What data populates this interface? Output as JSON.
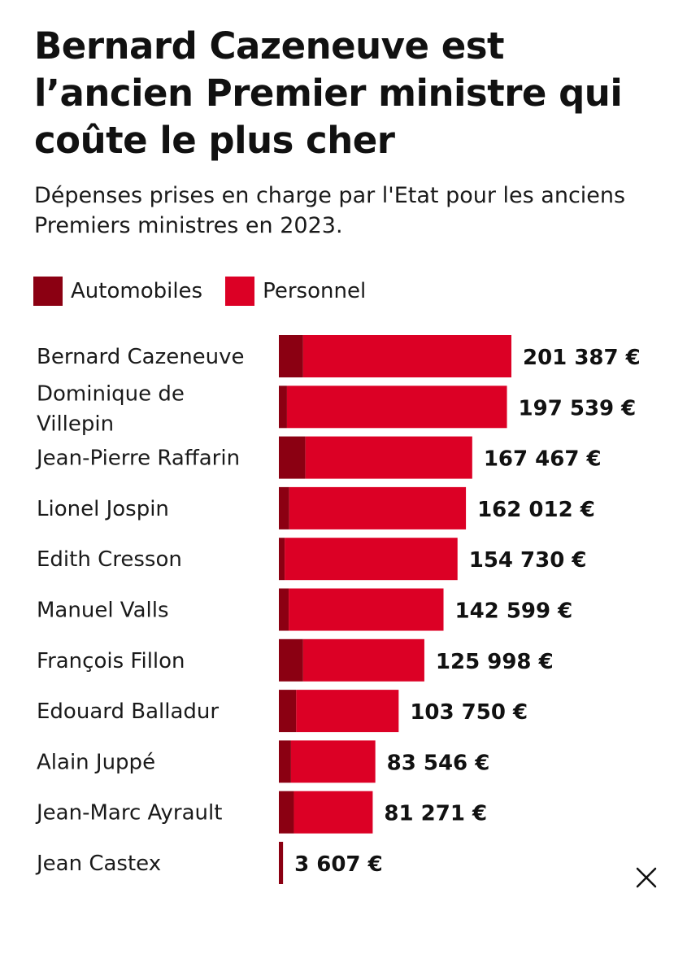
{
  "title": "Bernard Cazeneuve est l’ancien Premier ministre qui coûte le plus cher",
  "subtitle": "Dépenses prises en charge par l'Etat pour les anciens Premiers ministres en 2023.",
  "legend": [
    {
      "label": "Automobiles",
      "color": "#8b0012"
    },
    {
      "label": "Personnel",
      "color": "#dc0025"
    }
  ],
  "close_icon": "close-icon",
  "chart_data": {
    "type": "bar",
    "orientation": "horizontal",
    "stacked": true,
    "categories": [
      "Bernard Cazeneuve",
      "Dominique de Villepin",
      "Jean-Pierre Raffarin",
      "Lionel Jospin",
      "Edith Cresson",
      "Manuel Valls",
      "François Fillon",
      "Edouard Balladur",
      "Alain Juppé",
      "Jean-Marc Ayrault",
      "Jean Castex"
    ],
    "category_lines": [
      [
        "Bernard Cazeneuve"
      ],
      [
        "Dominique de",
        "Villepin"
      ],
      [
        "Jean-Pierre Raffarin"
      ],
      [
        "Lionel Jospin"
      ],
      [
        "Edith Cresson"
      ],
      [
        "Manuel Valls"
      ],
      [
        "François Fillon"
      ],
      [
        "Edouard Balladur"
      ],
      [
        "Alain Juppé"
      ],
      [
        "Jean-Marc Ayrault"
      ],
      [
        "Jean Castex"
      ]
    ],
    "series": [
      {
        "name": "Automobiles",
        "values": [
          21000,
          7000,
          23000,
          9000,
          5000,
          8500,
          21000,
          15000,
          10500,
          13000,
          3607
        ]
      },
      {
        "name": "Personnel",
        "values": [
          180387,
          190539,
          144467,
          153012,
          149730,
          134099,
          104998,
          88750,
          73046,
          68271,
          0
        ]
      }
    ],
    "totals": [
      201387,
      197539,
      167467,
      162012,
      154730,
      142599,
      125998,
      103750,
      83546,
      81271,
      3607
    ],
    "total_labels": [
      "201 387 €",
      "197 539 €",
      "167 467 €",
      "162 012 €",
      "154 730 €",
      "142 599 €",
      "125 998 €",
      "103 750 €",
      "83 546 €",
      "81 271 €",
      "3 607 €"
    ],
    "xlim": [
      0,
      201387
    ],
    "grid": false,
    "legend_position": "top-left"
  }
}
